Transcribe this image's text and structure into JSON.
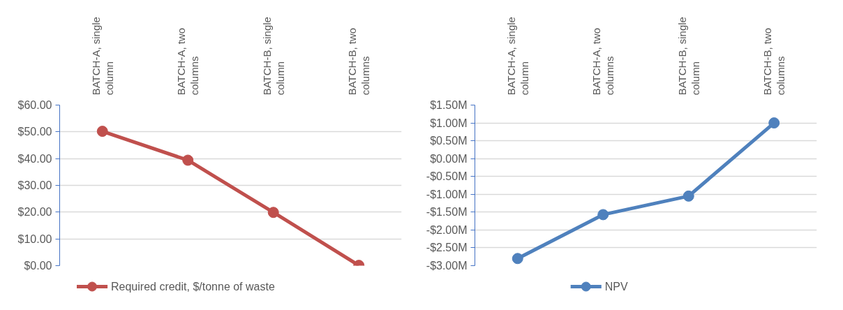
{
  "chart_data": [
    {
      "type": "line",
      "categories": [
        "BATCH-A, single column",
        "BATCH-A, two columns",
        "BATCH-B, single column",
        "BATCH-B, two columns"
      ],
      "series": [
        {
          "name": "Required credit, $/tonne of waste",
          "color": "#c0504d",
          "values": [
            50.2,
            39.4,
            19.9,
            0.1
          ]
        }
      ],
      "ylim": [
        0,
        60
      ],
      "yticks": [
        {
          "value": 0,
          "label": "$0.00"
        },
        {
          "value": 10,
          "label": "$10.00"
        },
        {
          "value": 20,
          "label": "$20.00"
        },
        {
          "value": 30,
          "label": "$30.00"
        },
        {
          "value": 40,
          "label": "$40.00"
        },
        {
          "value": 50,
          "label": "$50.00"
        },
        {
          "value": 60,
          "label": "$60.00"
        }
      ],
      "grid": "y",
      "legend": "bottom",
      "marker": "circle",
      "line_style": "solid"
    },
    {
      "type": "line",
      "categories": [
        "BATCH-A, single column",
        "BATCH-A, two columns",
        "BATCH-B, single column",
        "BATCH-B, two columns"
      ],
      "series": [
        {
          "name": "NPV",
          "color": "#4f81bd",
          "values": [
            -2.8,
            -1.57,
            -1.05,
            1.0
          ]
        }
      ],
      "ylim": [
        -3,
        1.5
      ],
      "yticks": [
        {
          "value": -3,
          "label": "-$3.00M"
        },
        {
          "value": -2.5,
          "label": "-$2.50M"
        },
        {
          "value": -2,
          "label": "-$2.00M"
        },
        {
          "value": -1.5,
          "label": "-$1.50M"
        },
        {
          "value": -1,
          "label": "-$1.00M"
        },
        {
          "value": -0.5,
          "label": "-$0.50M"
        },
        {
          "value": 0,
          "label": "$0.00M"
        },
        {
          "value": 0.5,
          "label": "$0.50M"
        },
        {
          "value": 1,
          "label": "$1.00M"
        },
        {
          "value": 1.5,
          "label": "$1.50M"
        }
      ],
      "grid": "y",
      "legend": "bottom",
      "marker": "circle",
      "line_style": "solid"
    }
  ]
}
